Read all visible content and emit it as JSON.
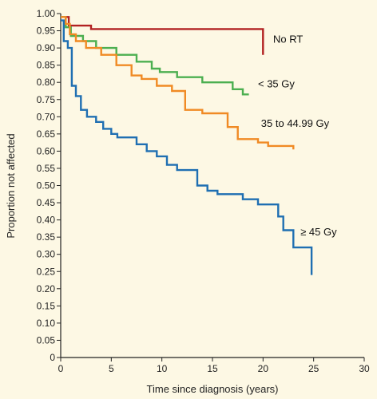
{
  "chart_data": {
    "type": "line",
    "title": "",
    "xlabel": "Time since diagnosis (years)",
    "ylabel": "Proportion not affected",
    "xlim": [
      0,
      30
    ],
    "ylim": [
      0,
      1.0
    ],
    "x_ticks": [
      "0",
      "5",
      "10",
      "15",
      "20",
      "25",
      "30"
    ],
    "y_ticks": [
      "0",
      "0.05",
      "0.10",
      "0.15",
      "0.20",
      "0.25",
      "0.30",
      "0.35",
      "0.40",
      "0.45",
      "0.50",
      "0.55",
      "0.60",
      "0.65",
      "0.70",
      "0.75",
      "0.80",
      "0.85",
      "0.90",
      "0.95",
      "1.00"
    ],
    "grid": false,
    "step": true,
    "series": [
      {
        "name": "No RT",
        "color": "#b22222",
        "x": [
          0,
          0.8,
          0.8,
          3.0,
          3.0,
          20.0,
          20.0
        ],
        "y": [
          0.99,
          0.99,
          0.965,
          0.965,
          0.955,
          0.955,
          0.88
        ]
      },
      {
        "name": "< 35 Gy",
        "color": "#4caf50",
        "x": [
          0,
          0.5,
          0.5,
          1.0,
          1.0,
          2.2,
          2.2,
          3.5,
          3.5,
          5.5,
          5.5,
          7.5,
          7.5,
          9.0,
          9.0,
          9.8,
          9.8,
          11.5,
          11.5,
          14.0,
          14.0,
          17.0,
          17.0,
          18.0,
          18.0,
          18.6
        ],
        "y": [
          0.99,
          0.99,
          0.96,
          0.96,
          0.935,
          0.935,
          0.92,
          0.92,
          0.9,
          0.9,
          0.88,
          0.88,
          0.86,
          0.86,
          0.84,
          0.84,
          0.83,
          0.83,
          0.815,
          0.815,
          0.8,
          0.8,
          0.78,
          0.78,
          0.765,
          0.765
        ]
      },
      {
        "name": "35 to 44.99 Gy",
        "color": "#f08a24",
        "x": [
          0,
          0.5,
          0.5,
          0.9,
          0.9,
          1.5,
          1.5,
          2.5,
          2.5,
          4.0,
          4.0,
          5.5,
          5.5,
          7.0,
          7.0,
          8.0,
          8.0,
          9.5,
          9.5,
          11.0,
          11.0,
          12.3,
          12.3,
          14.0,
          14.0,
          16.5,
          16.5,
          17.5,
          17.5,
          19.5,
          19.5,
          20.5,
          20.5,
          21.3,
          21.3,
          23.0,
          23.0
        ],
        "y": [
          0.99,
          0.99,
          0.97,
          0.97,
          0.94,
          0.94,
          0.92,
          0.92,
          0.9,
          0.9,
          0.88,
          0.88,
          0.85,
          0.85,
          0.82,
          0.82,
          0.81,
          0.81,
          0.79,
          0.79,
          0.775,
          0.775,
          0.72,
          0.72,
          0.71,
          0.71,
          0.67,
          0.67,
          0.635,
          0.635,
          0.625,
          0.625,
          0.615,
          0.615,
          0.615,
          0.615,
          0.605
        ]
      },
      {
        "name": "≥ 45 Gy",
        "color": "#1f6fb2",
        "x": [
          0,
          0.3,
          0.3,
          0.7,
          0.7,
          1.1,
          1.1,
          1.5,
          1.5,
          2.0,
          2.0,
          2.6,
          2.6,
          3.5,
          3.5,
          4.2,
          4.2,
          5.0,
          5.0,
          5.6,
          5.6,
          7.5,
          7.5,
          8.5,
          8.5,
          9.5,
          9.5,
          10.5,
          10.5,
          11.5,
          11.5,
          13.5,
          13.5,
          14.5,
          14.5,
          15.5,
          15.5,
          18.0,
          18.0,
          19.5,
          19.5,
          21.5,
          21.5,
          22.0,
          22.0,
          23.0,
          23.0,
          24.8,
          24.8
        ],
        "y": [
          0.98,
          0.98,
          0.92,
          0.92,
          0.9,
          0.9,
          0.79,
          0.79,
          0.76,
          0.76,
          0.72,
          0.72,
          0.7,
          0.7,
          0.685,
          0.685,
          0.665,
          0.665,
          0.65,
          0.65,
          0.64,
          0.64,
          0.62,
          0.62,
          0.6,
          0.6,
          0.585,
          0.585,
          0.56,
          0.56,
          0.545,
          0.545,
          0.5,
          0.5,
          0.485,
          0.485,
          0.475,
          0.475,
          0.46,
          0.46,
          0.445,
          0.445,
          0.41,
          0.41,
          0.37,
          0.37,
          0.32,
          0.32,
          0.24
        ]
      }
    ],
    "annotations": [
      {
        "text": "No RT",
        "series": "No RT",
        "x": 21.0,
        "y": 0.915
      },
      {
        "text": "< 35 Gy",
        "series": "< 35 Gy",
        "x": 19.5,
        "y": 0.785
      },
      {
        "text": "35 to 44.99 Gy",
        "series": "35 to 44.99 Gy",
        "x": 19.8,
        "y": 0.67
      },
      {
        "text": "≥ 45 Gy",
        "series": "≥ 45 Gy",
        "x": 23.7,
        "y": 0.355
      }
    ]
  }
}
